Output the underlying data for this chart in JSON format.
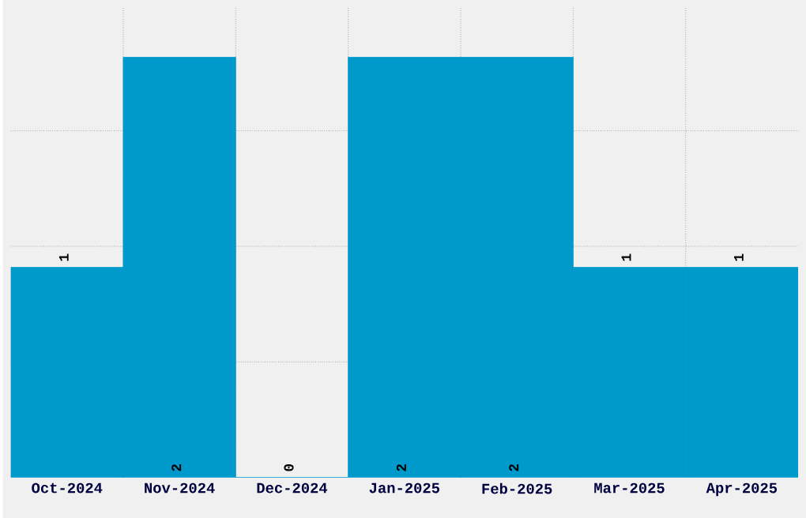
{
  "chart_data": {
    "type": "bar",
    "categories": [
      "Oct-2024",
      "Nov-2024",
      "Dec-2024",
      "Jan-2025",
      "Feb-2025",
      "Mar-2025",
      "Apr-2025"
    ],
    "values": [
      1,
      2,
      0,
      2,
      2,
      1,
      1
    ],
    "color": "#0099cc",
    "data_labels": true,
    "grid": true,
    "tick_labels": "x",
    "ylim": [
      0,
      2.235
    ],
    "yticks": [
      {
        "value": 0.55,
        "label": null
      },
      {
        "value": 1.1,
        "label": null
      },
      {
        "value": 1.65,
        "label": null
      }
    ]
  }
}
